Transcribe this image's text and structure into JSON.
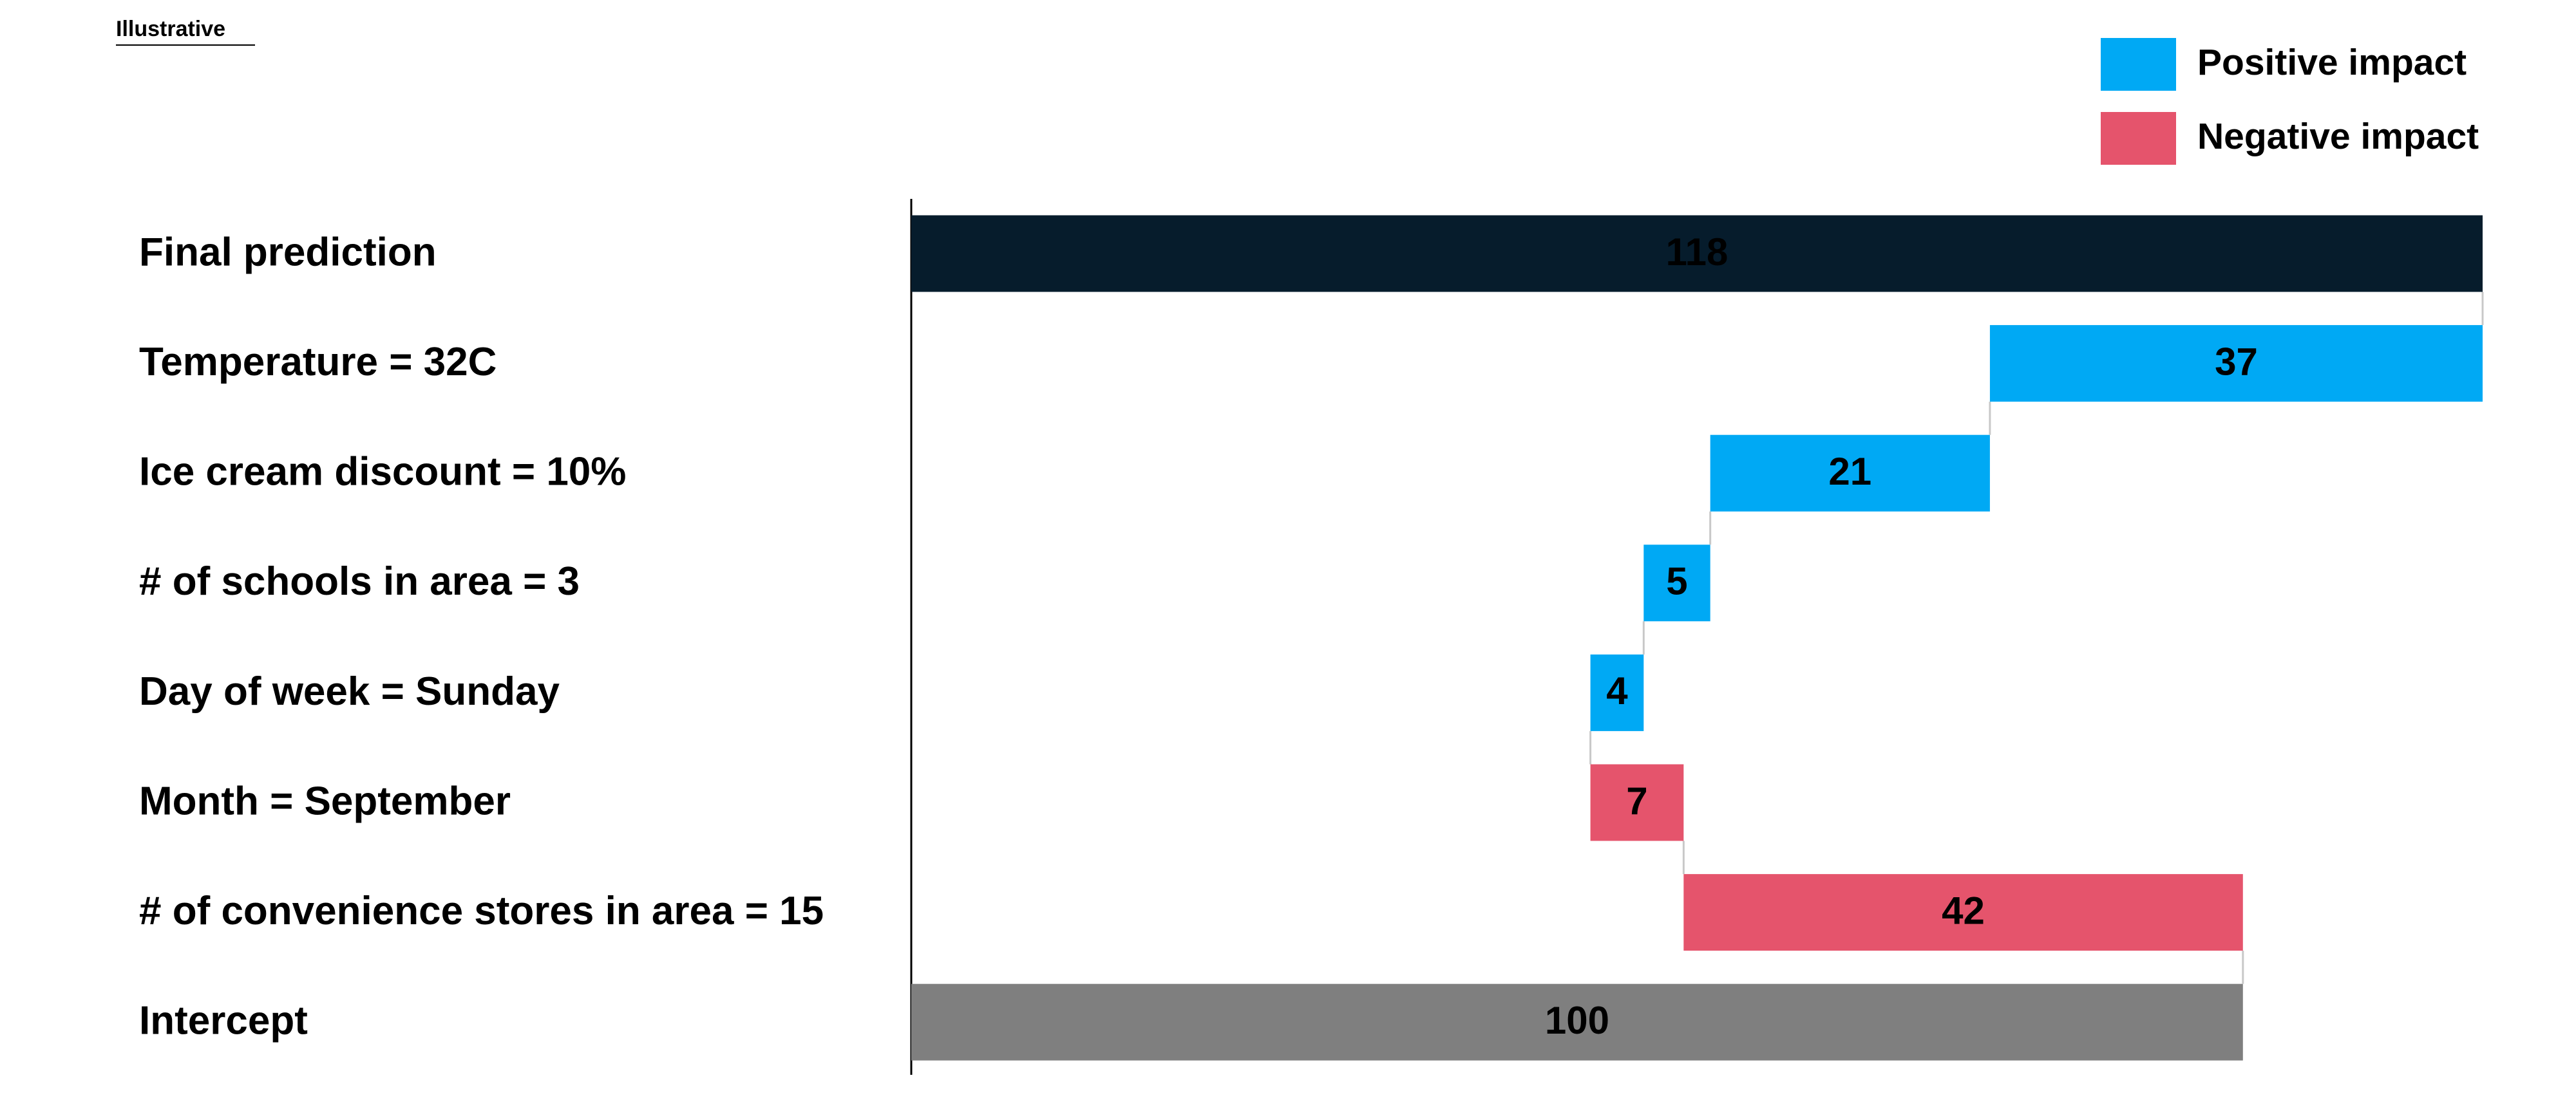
{
  "chart_data": {
    "type": "waterfall",
    "note": "Illustrative",
    "categories": [
      "Final prediction",
      "Temperature = 32C",
      "Ice cream discount = 10%",
      "# of schools in area = 3",
      "Day of week = Sunday",
      "Month = September",
      "# of convenience stores in area = 15",
      "Intercept"
    ],
    "start": {
      "value": 100,
      "color": "#7f7f7f"
    },
    "end": {
      "value": 118,
      "color": "#061c2c"
    },
    "series": [
      {
        "name": "Positive impact",
        "color": "#00a9f4",
        "values": [
          null,
          37,
          21,
          5,
          4,
          null,
          null,
          null
        ]
      },
      {
        "name": "Negative impact",
        "color": "#e5546c",
        "values": [
          null,
          null,
          null,
          null,
          null,
          7,
          42,
          null
        ]
      }
    ]
  }
}
